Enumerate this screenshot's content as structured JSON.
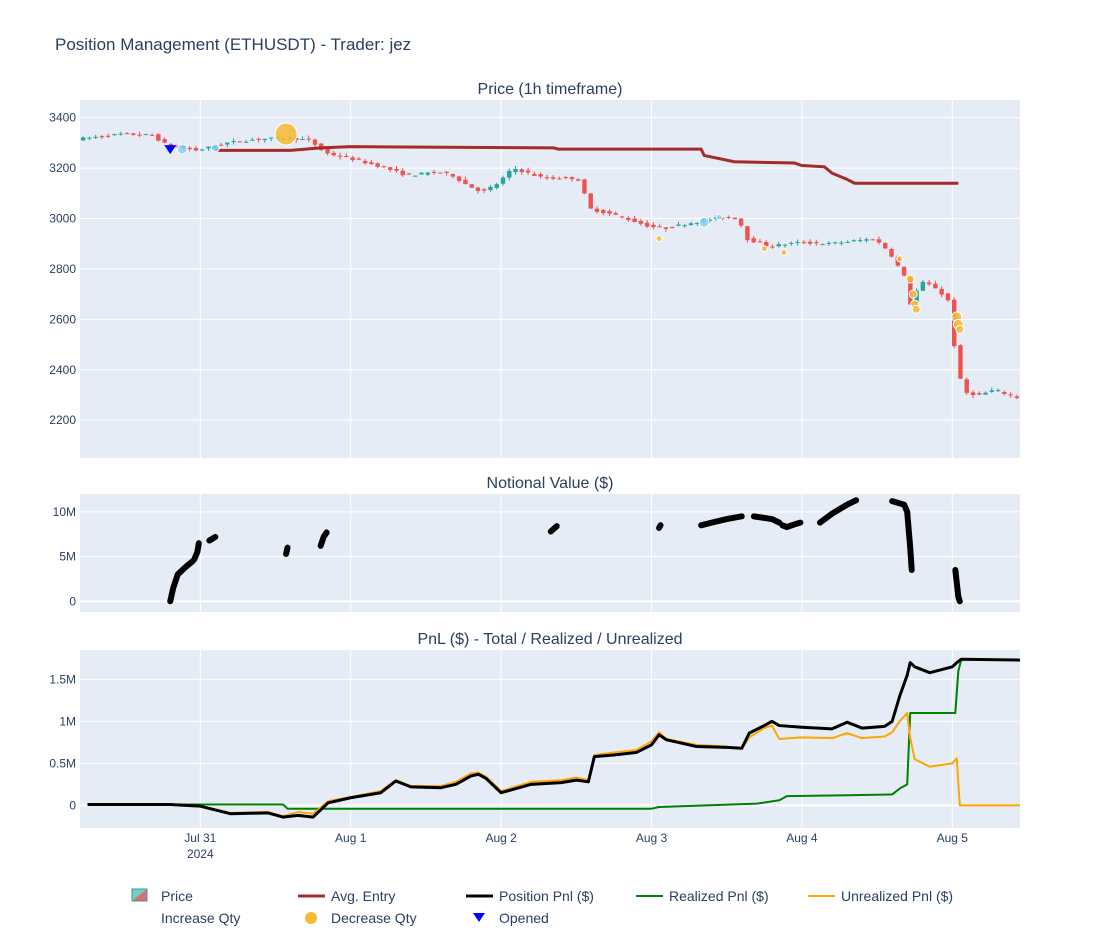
{
  "title": "Position Management (ETHUSDT) - Trader: jez",
  "colors": {
    "plot_bg": "#e5ecf6",
    "increase_candle": "#26a69a",
    "decrease_candle": "#ef5350",
    "avg_entry": "#a52a2a",
    "position_pnl": "#000000",
    "realized_pnl": "#008000",
    "unrealized_pnl": "#ffa500",
    "increase_qty": "#87cefa",
    "decrease_qty": "#f9b934",
    "opened": "#0000ff"
  },
  "x_ticks": [
    {
      "label": "Jul 31",
      "sub": "2024",
      "day": 0
    },
    {
      "label": "Aug 1",
      "sub": "",
      "day": 1
    },
    {
      "label": "Aug 2",
      "sub": "",
      "day": 2
    },
    {
      "label": "Aug 3",
      "sub": "",
      "day": 3
    },
    {
      "label": "Aug 4",
      "sub": "",
      "day": 4
    },
    {
      "label": "Aug 5",
      "sub": "",
      "day": 5
    }
  ],
  "chart_data": [
    {
      "type": "candlestick",
      "title": "Price (1h timeframe)",
      "xrange_days": [
        -0.8,
        5.45
      ],
      "ylim": [
        2050,
        3470
      ],
      "yticks": [
        "2200",
        "2400",
        "2600",
        "2800",
        "3000",
        "3200",
        "3400"
      ],
      "price_anchors": [
        [
          -0.8,
          3315
        ],
        [
          -0.5,
          3335
        ],
        [
          -0.3,
          3330
        ],
        [
          -0.2,
          3290
        ],
        [
          -0.1,
          3280
        ],
        [
          0.0,
          3270
        ],
        [
          0.2,
          3300
        ],
        [
          0.4,
          3315
        ],
        [
          0.6,
          3320
        ],
        [
          0.75,
          3310
        ],
        [
          0.85,
          3260
        ],
        [
          1.0,
          3240
        ],
        [
          1.2,
          3210
        ],
        [
          1.4,
          3170
        ],
        [
          1.6,
          3185
        ],
        [
          1.7,
          3170
        ],
        [
          1.8,
          3130
        ],
        [
          1.9,
          3105
        ],
        [
          2.0,
          3140
        ],
        [
          2.1,
          3200
        ],
        [
          2.3,
          3160
        ],
        [
          2.5,
          3160
        ],
        [
          2.55,
          3150
        ],
        [
          2.6,
          3040
        ],
        [
          2.8,
          3010
        ],
        [
          3.0,
          2970
        ],
        [
          3.1,
          2960
        ],
        [
          3.3,
          2985
        ],
        [
          3.5,
          3005
        ],
        [
          3.6,
          3000
        ],
        [
          3.65,
          2920
        ],
        [
          3.8,
          2890
        ],
        [
          4.0,
          2905
        ],
        [
          4.2,
          2900
        ],
        [
          4.5,
          2920
        ],
        [
          4.6,
          2870
        ],
        [
          4.7,
          2770
        ],
        [
          4.75,
          2640
        ],
        [
          4.8,
          2750
        ],
        [
          4.9,
          2730
        ],
        [
          5.0,
          2670
        ],
        [
          5.05,
          2410
        ],
        [
          5.1,
          2310
        ],
        [
          5.2,
          2300
        ],
        [
          5.3,
          2320
        ],
        [
          5.45,
          2290
        ]
      ],
      "avg_entry": [
        [
          0.1,
          3270
        ],
        [
          0.6,
          3270
        ],
        [
          0.8,
          3280
        ],
        [
          1.0,
          3285
        ],
        [
          2.35,
          3280
        ],
        [
          2.38,
          3275
        ],
        [
          3.33,
          3275
        ],
        [
          3.35,
          3250
        ],
        [
          3.55,
          3225
        ],
        [
          3.95,
          3220
        ],
        [
          4.0,
          3210
        ],
        [
          4.15,
          3205
        ],
        [
          4.2,
          3180
        ],
        [
          4.3,
          3155
        ],
        [
          4.35,
          3140
        ],
        [
          5.04,
          3140
        ]
      ],
      "increase_qty_markers": [
        [
          -0.12,
          3275,
          5
        ],
        [
          0.1,
          3280,
          4
        ],
        [
          3.35,
          2985,
          5
        ],
        [
          3.45,
          3005,
          3
        ]
      ],
      "decrease_qty_markers": [
        [
          0.57,
          3335,
          11
        ],
        [
          3.05,
          2920,
          3
        ],
        [
          3.75,
          2880,
          3
        ],
        [
          3.88,
          2865,
          3
        ],
        [
          4.65,
          2840,
          3
        ],
        [
          4.72,
          2760,
          4
        ],
        [
          4.74,
          2700,
          4
        ],
        [
          4.75,
          2660,
          4
        ],
        [
          4.76,
          2640,
          4
        ],
        [
          5.03,
          2610,
          5
        ],
        [
          5.04,
          2580,
          5
        ],
        [
          5.05,
          2560,
          4
        ]
      ],
      "opened_markers": [
        [
          -0.2,
          3275
        ]
      ]
    },
    {
      "type": "scatter",
      "title": "Notional Value ($)",
      "ylim": [
        -1200000,
        12000000
      ],
      "yticks": [
        {
          "v": 0,
          "label": "0"
        },
        {
          "v": 5000000,
          "label": "5M"
        },
        {
          "v": 10000000,
          "label": "10M"
        }
      ],
      "segments": [
        [
          [
            -0.2,
            0
          ],
          [
            -0.18,
            1500000
          ],
          [
            -0.15,
            3000000
          ],
          [
            -0.1,
            3800000
          ],
          [
            -0.05,
            4500000
          ]
        ],
        [
          [
            -0.04,
            4700000
          ],
          [
            -0.02,
            5500000
          ],
          [
            -0.01,
            6500000
          ]
        ],
        [
          [
            0.06,
            6800000
          ],
          [
            0.1,
            7200000
          ]
        ],
        [
          [
            0.57,
            5300000
          ],
          [
            0.58,
            6000000
          ]
        ],
        [
          [
            0.8,
            6200000
          ],
          [
            0.82,
            7200000
          ],
          [
            0.84,
            7700000
          ]
        ],
        [
          [
            2.33,
            7800000
          ],
          [
            2.37,
            8400000
          ]
        ],
        [
          [
            3.05,
            8200000
          ],
          [
            3.06,
            8500000
          ]
        ],
        [
          [
            3.33,
            8500000
          ],
          [
            3.4,
            8800000
          ],
          [
            3.5,
            9200000
          ],
          [
            3.6,
            9500000
          ]
        ],
        [
          [
            3.68,
            9500000
          ],
          [
            3.8,
            9200000
          ],
          [
            3.85,
            8800000
          ]
        ],
        [
          [
            3.87,
            8500000
          ],
          [
            3.9,
            8300000
          ],
          [
            3.95,
            8600000
          ],
          [
            3.99,
            8800000
          ]
        ],
        [
          [
            4.12,
            8800000
          ],
          [
            4.2,
            9800000
          ],
          [
            4.3,
            10800000
          ],
          [
            4.36,
            11300000
          ]
        ],
        [
          [
            4.6,
            11200000
          ],
          [
            4.68,
            10800000
          ],
          [
            4.7,
            10000000
          ],
          [
            4.71,
            8000000
          ],
          [
            4.72,
            6000000
          ],
          [
            4.73,
            3500000
          ]
        ],
        [
          [
            5.02,
            3500000
          ],
          [
            5.03,
            2000000
          ],
          [
            5.04,
            500000
          ],
          [
            5.05,
            0
          ]
        ]
      ]
    },
    {
      "type": "line",
      "title": "PnL ($) - Total / Realized / Unrealized",
      "ylim": [
        -270000,
        1850000
      ],
      "yticks": [
        {
          "v": 0,
          "label": "0"
        },
        {
          "v": 500000,
          "label": "0.5M"
        },
        {
          "v": 1000000,
          "label": "1M"
        },
        {
          "v": 1500000,
          "label": "1.5M"
        }
      ],
      "series": [
        {
          "name": "Realized Pnl ($)",
          "color_key": "realized_pnl",
          "width": 2,
          "values": [
            [
              -0.75,
              10000
            ],
            [
              0.55,
              10000
            ],
            [
              0.58,
              -40000
            ],
            [
              2.5,
              -40000
            ],
            [
              3.0,
              -40000
            ],
            [
              3.05,
              -20000
            ],
            [
              3.7,
              20000
            ],
            [
              3.85,
              60000
            ],
            [
              3.9,
              110000
            ],
            [
              4.3,
              120000
            ],
            [
              4.6,
              130000
            ],
            [
              4.65,
              200000
            ],
            [
              4.7,
              250000
            ],
            [
              4.72,
              1100000
            ],
            [
              5.02,
              1100000
            ],
            [
              5.04,
              1600000
            ],
            [
              5.06,
              1740000
            ],
            [
              5.45,
              1730000
            ]
          ]
        },
        {
          "name": "Unrealized Pnl ($)",
          "color_key": "unrealized_pnl",
          "width": 2,
          "values": [
            [
              -0.75,
              10000
            ],
            [
              -0.2,
              10000
            ],
            [
              -0.1,
              0
            ],
            [
              0.0,
              -10000
            ],
            [
              0.2,
              -90000
            ],
            [
              0.45,
              -80000
            ],
            [
              0.55,
              -130000
            ],
            [
              0.65,
              -80000
            ],
            [
              0.75,
              -100000
            ],
            [
              0.85,
              50000
            ],
            [
              1.0,
              100000
            ],
            [
              1.2,
              170000
            ],
            [
              1.3,
              300000
            ],
            [
              1.4,
              230000
            ],
            [
              1.6,
              230000
            ],
            [
              1.7,
              280000
            ],
            [
              1.8,
              380000
            ],
            [
              1.85,
              390000
            ],
            [
              1.9,
              340000
            ],
            [
              2.0,
              170000
            ],
            [
              2.2,
              280000
            ],
            [
              2.4,
              300000
            ],
            [
              2.5,
              330000
            ],
            [
              2.58,
              300000
            ],
            [
              2.62,
              600000
            ],
            [
              2.75,
              630000
            ],
            [
              2.9,
              660000
            ],
            [
              3.0,
              760000
            ],
            [
              3.05,
              870000
            ],
            [
              3.1,
              790000
            ],
            [
              3.3,
              720000
            ],
            [
              3.5,
              700000
            ],
            [
              3.6,
              670000
            ],
            [
              3.65,
              810000
            ],
            [
              3.75,
              920000
            ],
            [
              3.8,
              950000
            ],
            [
              3.85,
              790000
            ],
            [
              4.0,
              810000
            ],
            [
              4.2,
              800000
            ],
            [
              4.3,
              860000
            ],
            [
              4.4,
              800000
            ],
            [
              4.55,
              820000
            ],
            [
              4.6,
              870000
            ],
            [
              4.65,
              1000000
            ],
            [
              4.7,
              1100000
            ],
            [
              4.72,
              800000
            ],
            [
              4.75,
              550000
            ],
            [
              4.85,
              460000
            ],
            [
              5.0,
              500000
            ],
            [
              5.03,
              560000
            ],
            [
              5.04,
              250000
            ],
            [
              5.05,
              0
            ],
            [
              5.45,
              0
            ]
          ]
        },
        {
          "name": "Position Pnl ($)",
          "color_key": "position_pnl",
          "width": 3,
          "values": [
            [
              -0.75,
              10000
            ],
            [
              -0.2,
              10000
            ],
            [
              -0.1,
              0
            ],
            [
              0.0,
              -10000
            ],
            [
              0.2,
              -100000
            ],
            [
              0.45,
              -90000
            ],
            [
              0.55,
              -140000
            ],
            [
              0.65,
              -120000
            ],
            [
              0.75,
              -140000
            ],
            [
              0.85,
              30000
            ],
            [
              1.0,
              90000
            ],
            [
              1.2,
              150000
            ],
            [
              1.3,
              290000
            ],
            [
              1.4,
              220000
            ],
            [
              1.6,
              210000
            ],
            [
              1.7,
              250000
            ],
            [
              1.8,
              350000
            ],
            [
              1.85,
              370000
            ],
            [
              1.9,
              320000
            ],
            [
              2.0,
              150000
            ],
            [
              2.2,
              250000
            ],
            [
              2.4,
              270000
            ],
            [
              2.5,
              300000
            ],
            [
              2.58,
              280000
            ],
            [
              2.62,
              580000
            ],
            [
              2.75,
              600000
            ],
            [
              2.9,
              630000
            ],
            [
              3.0,
              720000
            ],
            [
              3.05,
              840000
            ],
            [
              3.1,
              780000
            ],
            [
              3.3,
              700000
            ],
            [
              3.5,
              690000
            ],
            [
              3.6,
              680000
            ],
            [
              3.65,
              860000
            ],
            [
              3.75,
              950000
            ],
            [
              3.8,
              1000000
            ],
            [
              3.85,
              950000
            ],
            [
              4.0,
              930000
            ],
            [
              4.2,
              910000
            ],
            [
              4.3,
              990000
            ],
            [
              4.4,
              920000
            ],
            [
              4.55,
              940000
            ],
            [
              4.6,
              1000000
            ],
            [
              4.65,
              1300000
            ],
            [
              4.7,
              1550000
            ],
            [
              4.72,
              1700000
            ],
            [
              4.75,
              1650000
            ],
            [
              4.85,
              1580000
            ],
            [
              5.0,
              1650000
            ],
            [
              5.03,
              1700000
            ],
            [
              5.06,
              1740000
            ],
            [
              5.45,
              1730000
            ]
          ]
        }
      ]
    }
  ],
  "legend": [
    {
      "label": "Price",
      "key": "candle"
    },
    {
      "label": "Avg. Entry",
      "key": "avg_entry"
    },
    {
      "label": "Position Pnl ($)",
      "key": "position_pnl"
    },
    {
      "label": "Realized Pnl ($)",
      "key": "realized_pnl"
    },
    {
      "label": "Unrealized Pnl ($)",
      "key": "unrealized_pnl"
    },
    {
      "label": "Increase Qty",
      "key": "increase_qty"
    },
    {
      "label": "Decrease Qty",
      "key": "decrease_qty"
    },
    {
      "label": "Opened",
      "key": "opened"
    }
  ]
}
